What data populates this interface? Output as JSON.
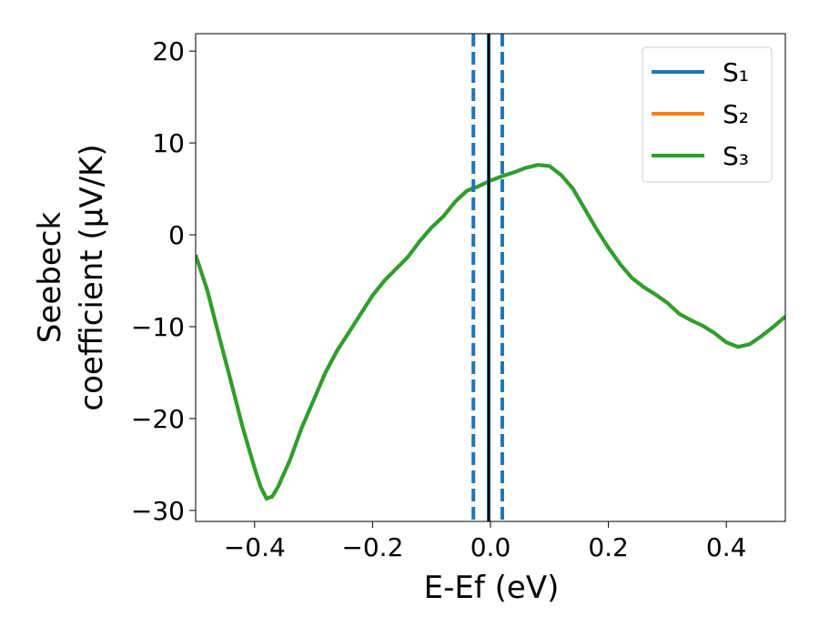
{
  "chart_data": {
    "type": "line",
    "xlabel": "E-Ef (eV)",
    "ylabel": [
      "Seebeck",
      "coefficient  (μV/K)"
    ],
    "x": [
      -0.5,
      -0.48,
      -0.46,
      -0.44,
      -0.42,
      -0.4,
      -0.39,
      -0.38,
      -0.37,
      -0.36,
      -0.34,
      -0.32,
      -0.3,
      -0.28,
      -0.26,
      -0.24,
      -0.22,
      -0.2,
      -0.18,
      -0.16,
      -0.14,
      -0.12,
      -0.1,
      -0.08,
      -0.06,
      -0.04,
      -0.02,
      0,
      0.02,
      0.04,
      0.06,
      0.08,
      0.1,
      0.12,
      0.14,
      0.16,
      0.18,
      0.2,
      0.22,
      0.24,
      0.26,
      0.28,
      0.3,
      0.32,
      0.34,
      0.36,
      0.38,
      0.4,
      0.42,
      0.44,
      0.46,
      0.48,
      0.5
    ],
    "series": [
      {
        "name": "S₁",
        "color": "#1f77b4",
        "values": [
          -2.2,
          -6.1,
          -11.1,
          -16,
          -21,
          -25.4,
          -27.4,
          -28.7,
          -28.5,
          -27.4,
          -24.5,
          -21,
          -18,
          -15,
          -12.6,
          -10.6,
          -8.6,
          -6.6,
          -5,
          -3.7,
          -2.4,
          -0.7,
          0.8,
          2,
          3.6,
          4.8,
          5.3,
          5.9,
          6.4,
          6.8,
          7.3,
          7.6,
          7.5,
          6.5,
          5,
          2.8,
          0.6,
          -1.4,
          -3.2,
          -4.7,
          -5.7,
          -6.5,
          -7.4,
          -8.6,
          -9.3,
          -9.9,
          -10.7,
          -11.7,
          -12.2,
          -11.9,
          -11,
          -10,
          -8.9
        ]
      },
      {
        "name": "S₂",
        "color": "#ff7f0e",
        "values": [
          -2.2,
          -6.1,
          -11.1,
          -16,
          -21,
          -25.4,
          -27.4,
          -28.7,
          -28.5,
          -27.4,
          -24.5,
          -21,
          -18,
          -15,
          -12.6,
          -10.6,
          -8.6,
          -6.6,
          -5,
          -3.7,
          -2.4,
          -0.7,
          0.8,
          2,
          3.6,
          4.8,
          5.3,
          5.9,
          6.4,
          6.8,
          7.3,
          7.6,
          7.5,
          6.5,
          5,
          2.8,
          0.6,
          -1.4,
          -3.2,
          -4.7,
          -5.7,
          -6.5,
          -7.4,
          -8.6,
          -9.3,
          -9.9,
          -10.7,
          -11.7,
          -12.2,
          -11.9,
          -11,
          -10,
          -8.9
        ]
      },
      {
        "name": "S₃",
        "color": "#2ca02c",
        "values": [
          -2.2,
          -6.1,
          -11.1,
          -16,
          -21,
          -25.4,
          -27.4,
          -28.7,
          -28.5,
          -27.4,
          -24.5,
          -21,
          -18,
          -15,
          -12.6,
          -10.6,
          -8.6,
          -6.6,
          -5,
          -3.7,
          -2.4,
          -0.7,
          0.8,
          2,
          3.6,
          4.8,
          5.3,
          5.9,
          6.4,
          6.8,
          7.3,
          7.6,
          7.5,
          6.5,
          5,
          2.8,
          0.6,
          -1.4,
          -3.2,
          -4.7,
          -5.7,
          -6.5,
          -7.4,
          -8.6,
          -9.3,
          -9.9,
          -10.7,
          -11.7,
          -12.2,
          -11.9,
          -11,
          -10,
          -8.9
        ]
      }
    ],
    "vlines": [
      {
        "x": -0.029,
        "color": "#1f77b4",
        "dashed": true
      },
      {
        "x": 0.02,
        "color": "#1f77b4",
        "dashed": true
      },
      {
        "x": -0.003,
        "color": "#1f77b4",
        "dashed": false
      },
      {
        "x": -0.003,
        "color": "#000000",
        "dashed": false
      }
    ],
    "xlim": [
      -0.5,
      0.5
    ],
    "ylim": [
      -31.2,
      21.9
    ],
    "xticks": [
      {
        "value": -0.4,
        "label": "−0.4"
      },
      {
        "value": -0.2,
        "label": "−0.2"
      },
      {
        "value": 0,
        "label": "0.0"
      },
      0.2,
      0.4
    ],
    "yticks": [
      {
        "value": -30,
        "label": "−30"
      },
      {
        "value": -20,
        "label": "−20"
      },
      {
        "value": -10,
        "label": "−10"
      },
      0,
      10,
      20
    ],
    "legend": "upper right"
  }
}
